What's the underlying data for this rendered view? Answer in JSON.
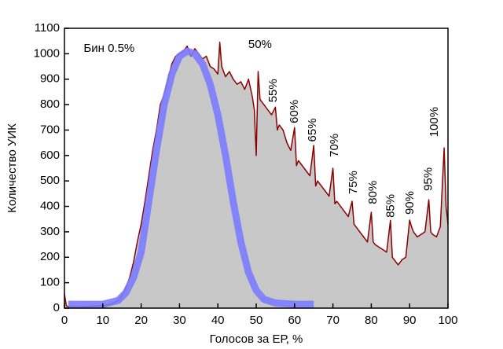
{
  "chart_data": {
    "type": "line",
    "xlabel": "Голосов за ЕР, %",
    "ylabel": "Количество УИК",
    "xlim": [
      0,
      100
    ],
    "xticks": [
      0,
      10,
      20,
      30,
      40,
      50,
      60,
      70,
      80,
      90,
      100
    ],
    "ylim": [
      0,
      1100
    ],
    "yticks": [
      0,
      100,
      200,
      300,
      400,
      500,
      600,
      700,
      800,
      900,
      1000,
      1100
    ],
    "series": [
      {
        "fill": "#c8c8c8",
        "color": "#8b0000",
        "x": [
          0,
          0.5,
          1,
          2,
          3,
          4,
          5,
          6,
          7,
          8,
          9,
          10,
          12,
          14,
          15,
          16,
          17,
          18,
          19,
          20,
          21,
          22,
          23,
          24,
          25,
          26,
          27,
          28,
          29,
          30,
          31,
          32,
          33,
          34,
          35,
          36,
          37,
          38,
          39,
          40,
          40.5,
          41,
          42,
          43,
          44,
          45,
          46,
          47,
          48,
          49,
          49.5,
          50,
          50.5,
          51,
          52,
          53,
          54,
          55,
          55.5,
          56,
          57,
          58,
          59,
          60,
          60.5,
          61,
          62,
          63,
          64,
          65,
          65.5,
          66,
          67,
          68,
          69,
          70,
          70.5,
          71,
          72,
          73,
          74,
          75,
          75.5,
          76,
          77,
          78,
          79,
          80,
          80.5,
          81,
          82,
          83,
          84,
          85,
          85.5,
          86,
          87,
          88,
          89,
          90,
          90.5,
          91,
          92,
          93,
          94,
          95,
          95.5,
          96,
          97,
          98,
          99,
          99.5,
          100
        ],
        "values": [
          55,
          10,
          5,
          5,
          6,
          5,
          6,
          7,
          8,
          8,
          9,
          10,
          15,
          30,
          50,
          80,
          120,
          180,
          260,
          330,
          420,
          520,
          620,
          700,
          800,
          840,
          900,
          960,
          990,
          1000,
          1010,
          1030,
          990,
          1020,
          1000,
          980,
          990,
          950,
          940,
          920,
          1045,
          950,
          910,
          930,
          900,
          880,
          890,
          860,
          900,
          830,
          780,
          600,
          930,
          820,
          800,
          780,
          760,
          790,
          700,
          720,
          700,
          650,
          620,
          710,
          560,
          580,
          560,
          540,
          520,
          640,
          480,
          500,
          480,
          460,
          440,
          550,
          410,
          420,
          400,
          380,
          360,
          420,
          330,
          320,
          300,
          280,
          260,
          377,
          260,
          250,
          240,
          230,
          220,
          345,
          200,
          190,
          170,
          190,
          200,
          346,
          320,
          300,
          280,
          290,
          300,
          426,
          300,
          290,
          280,
          320,
          630,
          400,
          330
        ]
      },
      {
        "color": "#7b7bff",
        "x": [
          1,
          10,
          14,
          16,
          18,
          20,
          22,
          24,
          26,
          28,
          30,
          32,
          34,
          36,
          38,
          40,
          42,
          44,
          46,
          48,
          50,
          52,
          55,
          60,
          65
        ],
        "values": [
          15,
          15,
          30,
          60,
          120,
          220,
          420,
          620,
          800,
          920,
          990,
          1010,
          1000,
          960,
          880,
          760,
          600,
          420,
          260,
          140,
          70,
          35,
          20,
          15,
          15
        ]
      }
    ],
    "annotations": [
      {
        "text": "Бин 0.5%",
        "x": 5,
        "y": 1020,
        "rotated": false
      },
      {
        "text": "50%",
        "x": 51,
        "y": 1035,
        "rotated": false
      },
      {
        "text": "55%",
        "x": 54.5,
        "y": 855,
        "rotated": true
      },
      {
        "text": "60%",
        "x": 60,
        "y": 773,
        "rotated": true
      },
      {
        "text": "65%",
        "x": 64.8,
        "y": 700,
        "rotated": true
      },
      {
        "text": "70%",
        "x": 70.5,
        "y": 640,
        "rotated": true
      },
      {
        "text": "75%",
        "x": 75.4,
        "y": 494,
        "rotated": true
      },
      {
        "text": "80%",
        "x": 80.5,
        "y": 455,
        "rotated": true
      },
      {
        "text": "85%",
        "x": 85.2,
        "y": 402,
        "rotated": true
      },
      {
        "text": "90%",
        "x": 90.2,
        "y": 414,
        "rotated": true
      },
      {
        "text": "95%",
        "x": 95,
        "y": 507,
        "rotated": true
      },
      {
        "text": "100%",
        "x": 96.5,
        "y": 732,
        "rotated": true
      }
    ]
  }
}
